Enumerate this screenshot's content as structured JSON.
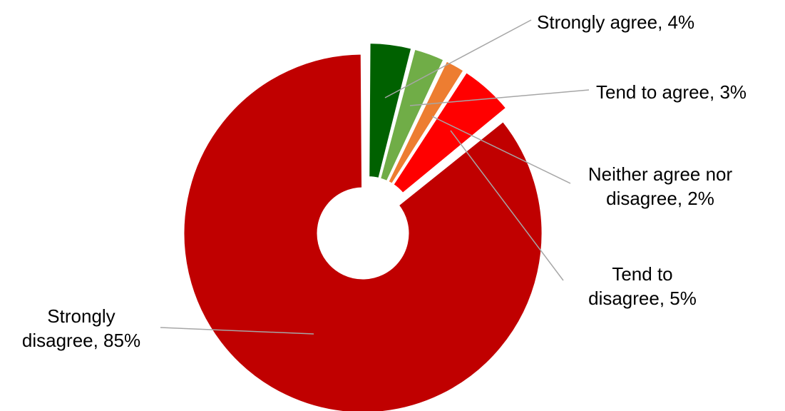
{
  "chart_data": {
    "type": "pie",
    "style": "doughnut-exploded",
    "title": "",
    "slices": [
      {
        "label": "Strongly agree",
        "value": 4,
        "value_label": "4%",
        "color": "#006100",
        "exploded": true
      },
      {
        "label": "Tend to agree",
        "value": 3,
        "value_label": "3%",
        "color": "#70ad47",
        "exploded": true
      },
      {
        "label": "Neither agree nor disagree",
        "value": 2,
        "value_label": "2%",
        "color": "#ed7d31",
        "exploded": true
      },
      {
        "label": "Tend to disagree",
        "value": 5,
        "value_label": "5%",
        "color": "#ff0000",
        "exploded": true
      },
      {
        "label": "Strongly disagree",
        "value": 85,
        "value_label": "85%",
        "color": "#c00000",
        "exploded": false
      }
    ],
    "labels": [
      {
        "lines": [
          "Strongly agree, 4%"
        ]
      },
      {
        "lines": [
          "Tend to agree, 3%"
        ]
      },
      {
        "lines": [
          "Neither agree nor",
          "disagree, 2%"
        ]
      },
      {
        "lines": [
          "Tend to",
          "disagree, 5%"
        ]
      },
      {
        "lines": [
          "Strongly",
          "disagree, 85%"
        ]
      }
    ],
    "legend": "none"
  }
}
